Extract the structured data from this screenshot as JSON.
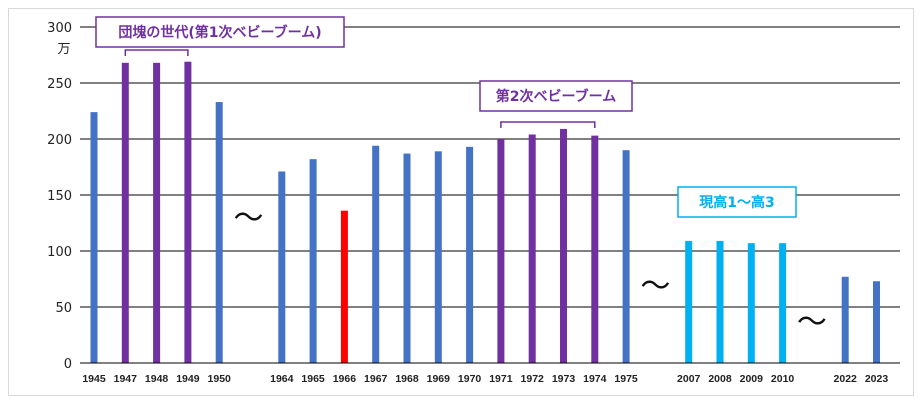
{
  "chart_data": {
    "type": "bar",
    "title": "",
    "xlabel": "",
    "ylabel": "",
    "unit_label": "万",
    "ylim": [
      0,
      300
    ],
    "yticks": [
      0,
      50,
      100,
      150,
      200,
      250,
      300
    ],
    "grid": true,
    "colors": {
      "default": "#4472c4",
      "baby_boom": "#7030a0",
      "hinoeuma": "#ff0000",
      "highschool": "#00b0f0",
      "grid": "#000000"
    },
    "groups": [
      {
        "years": [
          "1945",
          "1947",
          "1948",
          "1949",
          "1950"
        ],
        "values": [
          224,
          268,
          268,
          269,
          233
        ]
      },
      {
        "years": [
          "1964",
          "1965",
          "1966",
          "1967",
          "1968",
          "1969",
          "1970",
          "1971",
          "1972",
          "1973",
          "1974",
          "1975"
        ],
        "values": [
          171,
          182,
          136,
          194,
          187,
          189,
          193,
          200,
          204,
          209,
          203,
          190
        ]
      },
      {
        "years": [
          "2007",
          "2008",
          "2009",
          "2010"
        ],
        "values": [
          109,
          109,
          107,
          107
        ]
      },
      {
        "years": [
          "2022",
          "2023"
        ],
        "values": [
          77,
          73
        ]
      }
    ],
    "highlight": {
      "1947": "baby_boom",
      "1948": "baby_boom",
      "1949": "baby_boom",
      "1966": "hinoeuma",
      "1971": "baby_boom",
      "1972": "baby_boom",
      "1973": "baby_boom",
      "1974": "baby_boom",
      "2007": "highschool",
      "2008": "highschool",
      "2009": "highschool",
      "2010": "highschool"
    },
    "gap_marker": "～",
    "annotations": [
      {
        "text": "団塊の世代(第1次ベビーブーム)",
        "from": "1947",
        "to": "1949",
        "color": "#7030a0"
      },
      {
        "text": "第2次ベビーブーム",
        "from": "1971",
        "to": "1974",
        "color": "#7030a0"
      },
      {
        "text": "現高1～高3",
        "color": "#00b0f0"
      }
    ]
  }
}
